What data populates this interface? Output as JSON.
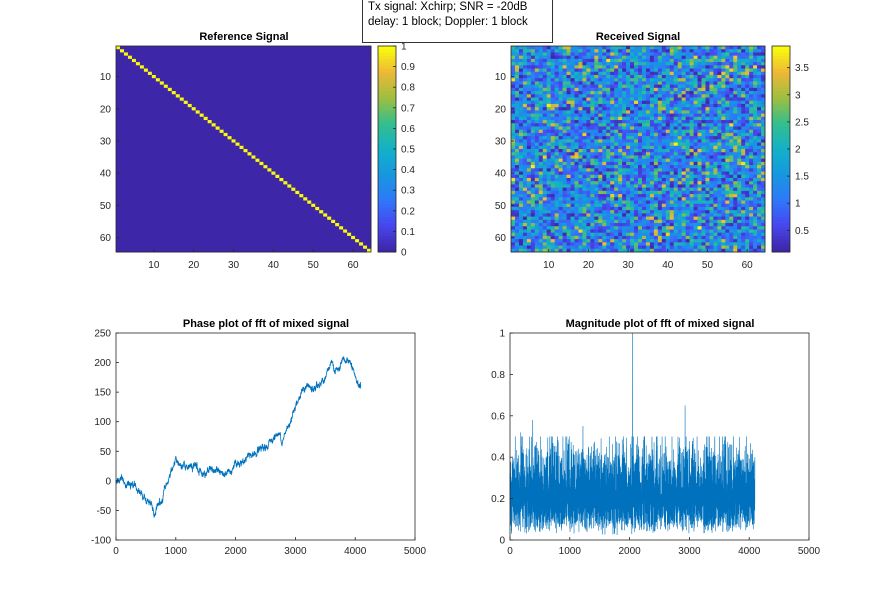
{
  "annotation": {
    "line1": "Tx signal: Xchirp; SNR = -20dB",
    "line2": "delay: 1 block; Doppler: 1 block"
  },
  "chart_data": [
    {
      "type": "heatmap",
      "title": "Reference Signal",
      "rows": 64,
      "cols": 64,
      "pattern": "identity",
      "xticks": [
        10,
        20,
        30,
        40,
        50,
        60
      ],
      "yticks": [
        10,
        20,
        30,
        40,
        50,
        60
      ],
      "colorbar": {
        "range": [
          0,
          1
        ],
        "ticks": [
          0,
          0.1,
          0.2,
          0.3,
          0.4,
          0.5,
          0.6,
          0.7,
          0.8,
          0.9,
          1
        ],
        "colormap": "parula"
      }
    },
    {
      "type": "heatmap",
      "title": "Received Signal",
      "rows": 64,
      "cols": 64,
      "pattern": "random",
      "value_range": [
        0.1,
        3.9
      ],
      "xticks": [
        10,
        20,
        30,
        40,
        50,
        60
      ],
      "yticks": [
        10,
        20,
        30,
        40,
        50,
        60
      ],
      "colorbar": {
        "range": [
          0.1,
          3.9
        ],
        "ticks": [
          0.5,
          1,
          1.5,
          2,
          2.5,
          3,
          3.5
        ],
        "colormap": "parula"
      }
    },
    {
      "type": "line",
      "title": "Phase plot of fft of mixed signal",
      "xlim": [
        0,
        5000
      ],
      "ylim": [
        -100,
        250
      ],
      "xticks": [
        0,
        1000,
        2000,
        3000,
        4000,
        5000
      ],
      "yticks": [
        -100,
        -50,
        0,
        50,
        100,
        150,
        200,
        250
      ],
      "color": "#0072BD",
      "n_points": 4096,
      "anchors": [
        [
          0,
          0
        ],
        [
          150,
          5
        ],
        [
          300,
          -10
        ],
        [
          450,
          -25
        ],
        [
          650,
          -55
        ],
        [
          750,
          -35
        ],
        [
          850,
          -5
        ],
        [
          1000,
          35
        ],
        [
          1100,
          20
        ],
        [
          1200,
          25
        ],
        [
          1400,
          15
        ],
        [
          1600,
          20
        ],
        [
          1800,
          15
        ],
        [
          2000,
          25
        ],
        [
          2100,
          35
        ],
        [
          2300,
          45
        ],
        [
          2500,
          50
        ],
        [
          2600,
          70
        ],
        [
          2700,
          80
        ],
        [
          2800,
          70
        ],
        [
          2900,
          100
        ],
        [
          3000,
          130
        ],
        [
          3100,
          150
        ],
        [
          3200,
          160
        ],
        [
          3300,
          150
        ],
        [
          3400,
          165
        ],
        [
          3500,
          175
        ],
        [
          3600,
          195
        ],
        [
          3700,
          185
        ],
        [
          3800,
          195
        ],
        [
          3900,
          205
        ],
        [
          4000,
          170
        ],
        [
          4050,
          165
        ],
        [
          4096,
          155
        ]
      ]
    },
    {
      "type": "line",
      "title": "Magnitude plot of fft of mixed signal",
      "xlim": [
        0,
        5000
      ],
      "ylim": [
        0,
        1
      ],
      "xticks": [
        0,
        1000,
        2000,
        3000,
        4000,
        5000
      ],
      "yticks": [
        0,
        0.2,
        0.4,
        0.6,
        0.8,
        1
      ],
      "color": "#0072BD",
      "n_points": 4096,
      "noise_floor": 0.2,
      "peaks": [
        [
          2048,
          1.0
        ],
        [
          2928,
          0.65
        ],
        [
          1220,
          0.55
        ],
        [
          380,
          0.58
        ],
        [
          180,
          0.52
        ]
      ]
    }
  ]
}
